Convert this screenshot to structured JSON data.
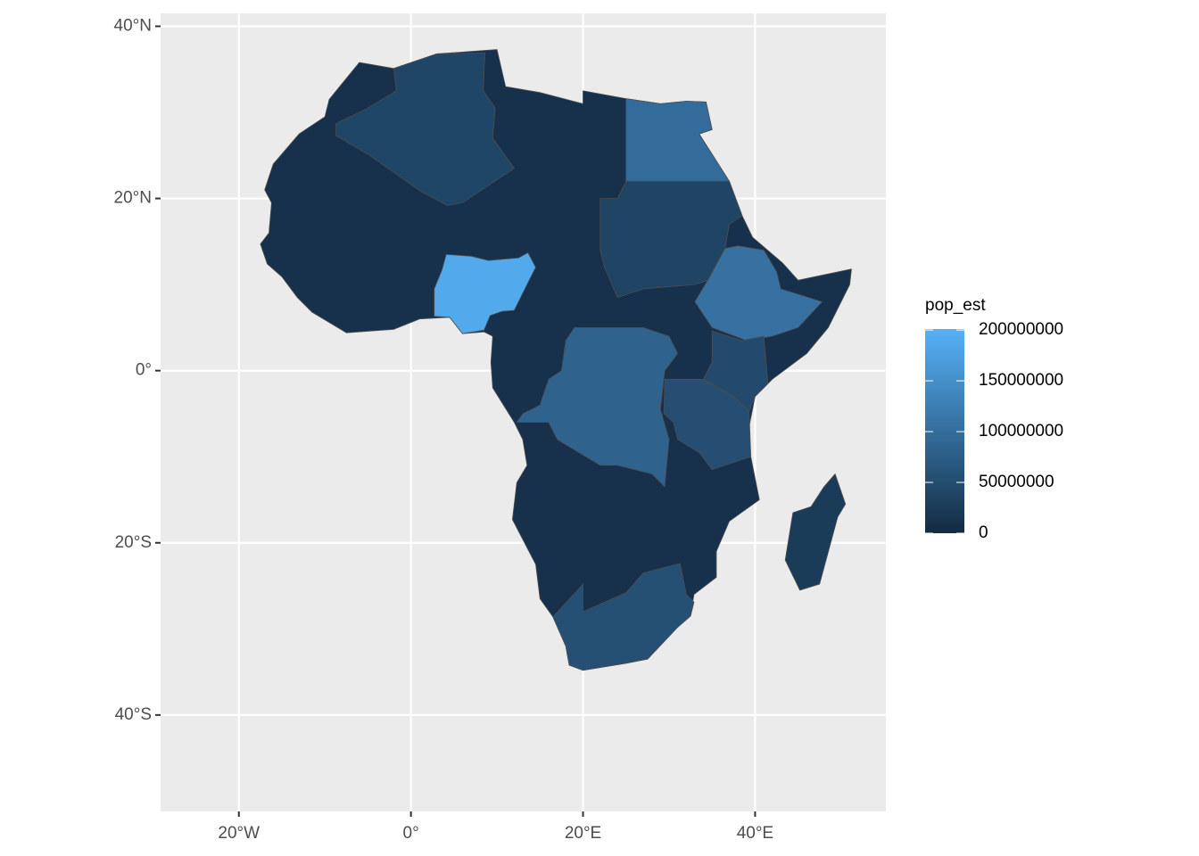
{
  "chart_data": {
    "type": "choropleth",
    "fill_title": "pop_est",
    "values": [
      190000000,
      105000000,
      97000000,
      83000000,
      53000000,
      47000000,
      54000000,
      40000000,
      37000000,
      25000000
    ],
    "fill_lim": [
      0,
      200963599
    ],
    "fill_ticks": [
      0,
      50000000,
      100000000,
      150000000,
      200000000
    ],
    "low_color": "#132B43",
    "high_color": "#56B1F7",
    "xlim": [
      -29.1,
      55.2
    ],
    "ylim": [
      -51.2,
      41.5
    ],
    "xticks": [
      {
        "value": -20,
        "label": "20°W"
      },
      {
        "value": 0,
        "label": "0°"
      },
      {
        "value": 20,
        "label": "20°E"
      },
      {
        "value": 40,
        "label": "40°E"
      }
    ],
    "yticks": [
      {
        "value": -40,
        "label": "40°S"
      },
      {
        "value": -20,
        "label": "20°S"
      },
      {
        "value": 0,
        "label": "0°"
      },
      {
        "value": 20,
        "label": "20°N"
      },
      {
        "value": 40,
        "label": "40°N"
      }
    ],
    "grid": true
  }
}
